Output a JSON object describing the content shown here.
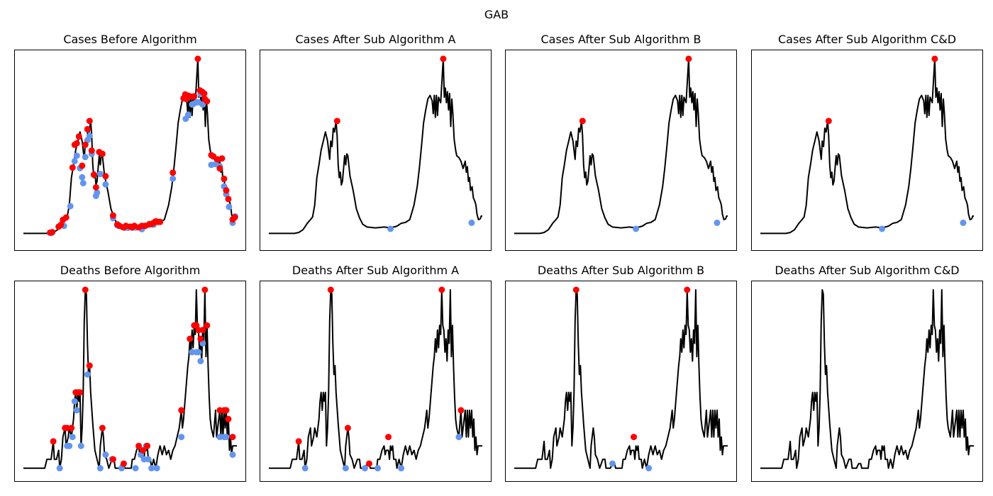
{
  "figure": {
    "title": "GAB"
  },
  "colors": {
    "line": "#000000",
    "peak": "#ff0000",
    "trough": "#6495ed",
    "background": "#ffffff"
  },
  "chart_data": [
    {
      "type": "line",
      "title": "Cases Before Algorithm",
      "xlim": [
        0,
        100
      ],
      "ylim": [
        0,
        100
      ],
      "grid": false,
      "axis_ticks": false,
      "curve": "cases",
      "peaks": [
        [
          12.5,
          4.9
        ],
        [
          13.5,
          5.2
        ],
        [
          16.5,
          8.2
        ],
        [
          17.5,
          9.1
        ],
        [
          18.5,
          11.9
        ],
        [
          20,
          13.2
        ],
        [
          23,
          40.5
        ],
        [
          24,
          53
        ],
        [
          25,
          53.8
        ],
        [
          26,
          57.5
        ],
        [
          27.5,
          41.5
        ],
        [
          29,
          53
        ],
        [
          30,
          61.5
        ],
        [
          31,
          66
        ],
        [
          32,
          49.8
        ],
        [
          33,
          36.6
        ],
        [
          34,
          29.7
        ],
        [
          35.5,
          49
        ],
        [
          37,
          48
        ],
        [
          38.5,
          35.8
        ],
        [
          42,
          14.3
        ],
        [
          44,
          9.4
        ],
        [
          45,
          8.6
        ],
        [
          47,
          7.8
        ],
        [
          48,
          8.6
        ],
        [
          50,
          8.2
        ],
        [
          51,
          7.9
        ],
        [
          52,
          8.6
        ],
        [
          54,
          7.8
        ],
        [
          55.5,
          8.6
        ],
        [
          57,
          8.6
        ],
        [
          59,
          9.6
        ],
        [
          60,
          9.6
        ],
        [
          61,
          10.3
        ],
        [
          62,
          11.1
        ],
        [
          63,
          10.8
        ],
        [
          64,
          10.8
        ],
        [
          70,
          37.7
        ],
        [
          75,
          78.4
        ],
        [
          75.8,
          80.5
        ],
        [
          76.3,
          78
        ],
        [
          77.3,
          79.8
        ],
        [
          79,
          79.3
        ],
        [
          80,
          79.5
        ],
        [
          81.7,
          100
        ],
        [
          82.7,
          82.7
        ],
        [
          83.7,
          82
        ],
        [
          84.7,
          81
        ],
        [
          85,
          78
        ],
        [
          86,
          76.8
        ],
        [
          88,
          47.3
        ],
        [
          89,
          46.6
        ],
        [
          91,
          45
        ],
        [
          92,
          40
        ],
        [
          93,
          45.5
        ],
        [
          94,
          34.4
        ],
        [
          95,
          28
        ],
        [
          96,
          23.3
        ],
        [
          98,
          12.1
        ],
        [
          99,
          13.3
        ]
      ],
      "troughs": [
        [
          13.2,
          4.8
        ],
        [
          19,
          8.6
        ],
        [
          22,
          19.4
        ],
        [
          24,
          44
        ],
        [
          25,
          47
        ],
        [
          26.5,
          40.2
        ],
        [
          27.5,
          35.2
        ],
        [
          28,
          32
        ],
        [
          29,
          46.3
        ],
        [
          30,
          55.5
        ],
        [
          31,
          57.8
        ],
        [
          32,
          48
        ],
        [
          34,
          25
        ],
        [
          34.5,
          26.8
        ],
        [
          36,
          37
        ],
        [
          38.5,
          31.3
        ],
        [
          42,
          12.8
        ],
        [
          44,
          8.9
        ],
        [
          46.3,
          7.9
        ],
        [
          47.5,
          7.6
        ],
        [
          49,
          7.6
        ],
        [
          51,
          7.6
        ],
        [
          52.5,
          7.7
        ],
        [
          55.5,
          6.8
        ],
        [
          57,
          8.6
        ],
        [
          59,
          9.3
        ],
        [
          60,
          9.6
        ],
        [
          61,
          9.3
        ],
        [
          62,
          10.8
        ],
        [
          70,
          34.4
        ],
        [
          76,
          67.2
        ],
        [
          77.2,
          69.4
        ],
        [
          79,
          75
        ],
        [
          79.6,
          75.3
        ],
        [
          81,
          76.2
        ],
        [
          82,
          76.2
        ],
        [
          83,
          80.7
        ],
        [
          84,
          75
        ],
        [
          88,
          42
        ],
        [
          90,
          42.4
        ],
        [
          92,
          41.2
        ],
        [
          94,
          30.2
        ],
        [
          95,
          25.9
        ],
        [
          96.3,
          19
        ],
        [
          98,
          10.3
        ],
        [
          99.2,
          13.8
        ]
      ]
    },
    {
      "type": "line",
      "title": "Cases After Sub Algorithm A",
      "xlim": [
        0,
        100
      ],
      "ylim": [
        0,
        100
      ],
      "grid": false,
      "axis_ticks": false,
      "curve": "cases",
      "peaks": [
        [
          32,
          66
        ],
        [
          81.7,
          100
        ]
      ],
      "troughs": [
        [
          57,
          7
        ],
        [
          95,
          10.3
        ]
      ]
    },
    {
      "type": "line",
      "title": "Cases After Sub Algorithm B",
      "xlim": [
        0,
        100
      ],
      "ylim": [
        0,
        100
      ],
      "grid": false,
      "axis_ticks": false,
      "curve": "cases",
      "peaks": [
        [
          32,
          66
        ],
        [
          81.7,
          100
        ]
      ],
      "troughs": [
        [
          57,
          7
        ],
        [
          95,
          10.3
        ]
      ]
    },
    {
      "type": "line",
      "title": "Cases After Sub Algorithm C&D",
      "xlim": [
        0,
        100
      ],
      "ylim": [
        0,
        100
      ],
      "grid": false,
      "axis_ticks": false,
      "curve": "cases",
      "peaks": [
        [
          32,
          66
        ],
        [
          81.7,
          100
        ]
      ],
      "troughs": [
        [
          57,
          7
        ],
        [
          95,
          10.3
        ]
      ]
    },
    {
      "type": "line",
      "title": "Deaths Before Algorithm",
      "xlim": [
        0,
        100
      ],
      "ylim": [
        0,
        100
      ],
      "grid": false,
      "axis_ticks": false,
      "curve": "deaths",
      "peaks": [
        [
          14,
          17.1
        ],
        [
          19.5,
          24.4
        ],
        [
          20.5,
          24.4
        ],
        [
          22.5,
          24.4
        ],
        [
          24.5,
          43.9
        ],
        [
          25.5,
          43.9
        ],
        [
          26.5,
          43.9
        ],
        [
          29,
          100
        ],
        [
          31,
          58.5
        ],
        [
          37,
          24.4
        ],
        [
          42,
          7.3
        ],
        [
          47,
          4.9
        ],
        [
          54,
          14.6
        ],
        [
          56,
          12.2
        ],
        [
          58,
          14.6
        ],
        [
          74,
          34.1
        ],
        [
          78,
          73.2
        ],
        [
          80,
          80.5
        ],
        [
          81,
          80.5
        ],
        [
          82,
          78
        ],
        [
          83,
          73.2
        ],
        [
          84,
          78
        ],
        [
          85,
          100
        ],
        [
          86,
          80.5
        ],
        [
          92,
          34.1
        ],
        [
          94,
          34.1
        ],
        [
          95,
          34.1
        ],
        [
          96,
          29.3
        ],
        [
          98,
          19.5
        ]
      ],
      "troughs": [
        [
          17,
          2.4
        ],
        [
          20.5,
          14.6
        ],
        [
          21.5,
          14.6
        ],
        [
          23,
          19.5
        ],
        [
          24,
          39
        ],
        [
          25,
          34.1
        ],
        [
          27,
          14.6
        ],
        [
          30,
          53.7
        ],
        [
          36,
          2.4
        ],
        [
          38.5,
          9.8
        ],
        [
          41.5,
          7.3
        ],
        [
          46,
          2.4
        ],
        [
          52.5,
          2.4
        ],
        [
          55,
          9.8
        ],
        [
          56.5,
          7.3
        ],
        [
          58.5,
          7.3
        ],
        [
          57.5,
          14.6
        ],
        [
          60,
          2.4
        ],
        [
          62.5,
          2.4
        ],
        [
          74,
          19.5
        ],
        [
          79,
          65.9
        ],
        [
          81,
          65.9
        ],
        [
          82,
          65.9
        ],
        [
          83,
          61
        ],
        [
          84,
          70.7
        ],
        [
          92,
          19.5
        ],
        [
          94,
          19.5
        ],
        [
          95,
          19.5
        ],
        [
          98,
          9.8
        ]
      ]
    },
    {
      "type": "line",
      "title": "Deaths After Sub Algorithm A",
      "xlim": [
        0,
        100
      ],
      "ylim": [
        0,
        100
      ],
      "grid": false,
      "axis_ticks": false,
      "curve": "deaths",
      "peaks": [
        [
          14,
          17.1
        ],
        [
          29,
          100
        ],
        [
          37,
          24.4
        ],
        [
          47,
          4.9
        ],
        [
          56,
          19.5
        ],
        [
          81,
          100
        ],
        [
          90,
          34.1
        ]
      ],
      "troughs": [
        [
          17,
          2.4
        ],
        [
          36,
          2.4
        ],
        [
          45,
          2.4
        ],
        [
          51,
          2.4
        ],
        [
          62,
          2.4
        ],
        [
          89,
          19.5
        ]
      ]
    },
    {
      "type": "line",
      "title": "Deaths After Sub Algorithm B",
      "xlim": [
        0,
        100
      ],
      "ylim": [
        0,
        100
      ],
      "grid": false,
      "axis_ticks": false,
      "curve": "deaths",
      "peaks": [
        [
          29,
          100
        ],
        [
          56,
          19.5
        ],
        [
          81,
          100
        ]
      ],
      "troughs": [
        [
          46,
          4.9
        ],
        [
          63,
          2.4
        ]
      ]
    },
    {
      "type": "line",
      "title": "Deaths After Sub Algorithm C&D",
      "xlim": [
        0,
        100
      ],
      "ylim": [
        0,
        100
      ],
      "grid": false,
      "axis_ticks": false,
      "curve": "deaths",
      "peaks": [],
      "troughs": []
    }
  ]
}
